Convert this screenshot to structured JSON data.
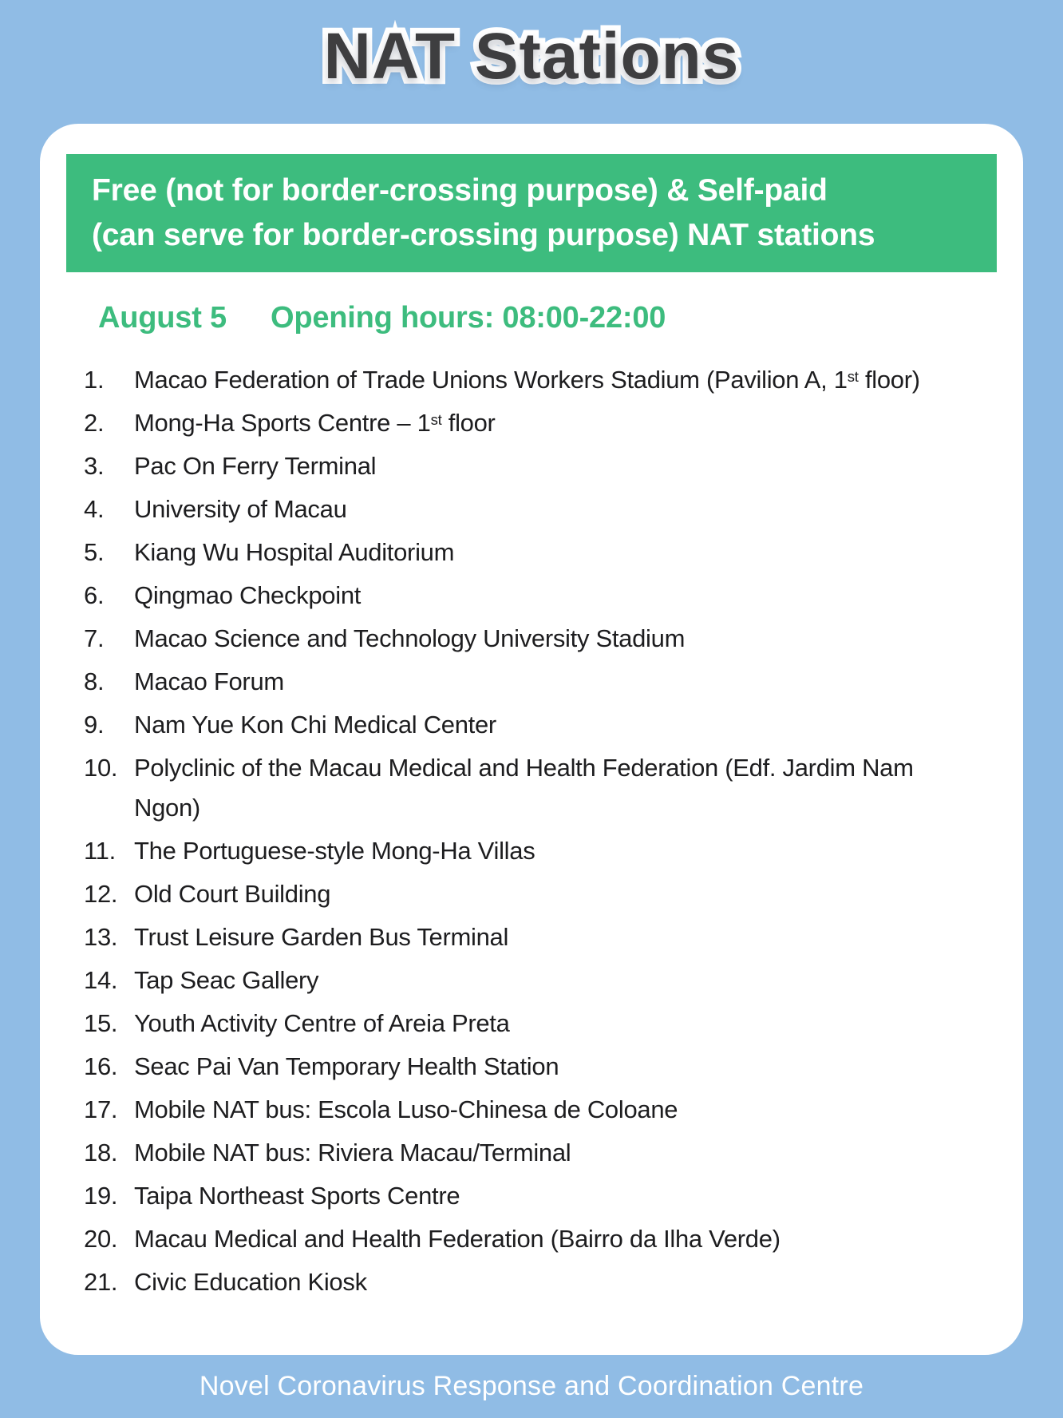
{
  "page": {
    "title": "NAT Stations",
    "footer": "Novel Coronavirus Response and Coordination Centre"
  },
  "banner": {
    "line1": "Free (not for border-crossing purpose) & Self-paid",
    "line2": "(can serve for border-crossing purpose) NAT stations"
  },
  "schedule": {
    "date": "August 5",
    "hours": "Opening hours: 08:00-22:00"
  },
  "stations": [
    {
      "num": "1.",
      "parts": [
        {
          "text": "Macao Federation of Trade Unions Workers Stadium (Pavilion A, 1"
        },
        {
          "sup": "st"
        },
        {
          "text": " floor)"
        }
      ]
    },
    {
      "num": "2.",
      "parts": [
        {
          "text": "Mong-Ha Sports Centre – 1"
        },
        {
          "sup": "st"
        },
        {
          "text": " floor"
        }
      ]
    },
    {
      "num": "3.",
      "parts": [
        {
          "text": "Pac On Ferry Terminal"
        }
      ]
    },
    {
      "num": "4.",
      "parts": [
        {
          "text": "University of Macau"
        }
      ]
    },
    {
      "num": "5.",
      "parts": [
        {
          "text": "Kiang Wu Hospital Auditorium"
        }
      ]
    },
    {
      "num": "6.",
      "parts": [
        {
          "text": "Qingmao Checkpoint"
        }
      ]
    },
    {
      "num": "7.",
      "parts": [
        {
          "text": "Macao Science and Technology University Stadium"
        }
      ]
    },
    {
      "num": "8.",
      "parts": [
        {
          "text": "Macao Forum"
        }
      ]
    },
    {
      "num": "9.",
      "parts": [
        {
          "text": "Nam Yue Kon Chi Medical Center"
        }
      ]
    },
    {
      "num": "10.",
      "parts": [
        {
          "text": "Polyclinic of the Macau Medical and Health Federation (Edf. Jardim Nam"
        },
        {
          "break": true
        },
        {
          "text": "Ngon)"
        }
      ]
    },
    {
      "num": "11.",
      "parts": [
        {
          "text": "The Portuguese-style Mong-Ha Villas"
        }
      ]
    },
    {
      "num": "12.",
      "parts": [
        {
          "text": "Old Court Building"
        }
      ]
    },
    {
      "num": "13.",
      "parts": [
        {
          "text": "Trust Leisure Garden Bus Terminal"
        }
      ]
    },
    {
      "num": "14.",
      "parts": [
        {
          "text": "Tap Seac Gallery"
        }
      ]
    },
    {
      "num": "15.",
      "parts": [
        {
          "text": "Youth Activity Centre of Areia Preta"
        }
      ]
    },
    {
      "num": "16.",
      "parts": [
        {
          "text": "Seac Pai Van Temporary Health Station"
        }
      ]
    },
    {
      "num": "17.",
      "parts": [
        {
          "text": "Mobile NAT bus: Escola Luso-Chinesa de Coloane"
        }
      ]
    },
    {
      "num": "18.",
      "parts": [
        {
          "text": "Mobile NAT bus: Riviera Macau/Terminal"
        }
      ]
    },
    {
      "num": "19.",
      "parts": [
        {
          "text": "Taipa Northeast Sports Centre"
        }
      ]
    },
    {
      "num": "20.",
      "parts": [
        {
          "text": "Macau Medical and Health Federation (Bairro da Ilha Verde)"
        }
      ]
    },
    {
      "num": "21.",
      "parts": [
        {
          "text": "Civic Education Kiosk"
        }
      ]
    }
  ],
  "colors": {
    "background_blue": "#90bce5",
    "accent_green": "#3dbc7e",
    "title_gray": "#3e3e40",
    "text_dark": "#1d1d1f",
    "card_white": "#ffffff"
  }
}
